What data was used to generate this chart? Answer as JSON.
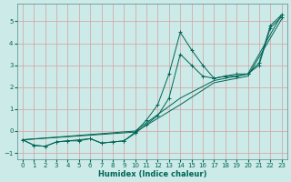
{
  "xlabel": "Humidex (Indice chaleur)",
  "xlim": [
    -0.5,
    23.5
  ],
  "ylim": [
    -1.3,
    5.8
  ],
  "background_color": "#cceae8",
  "grid_color": "#d4a0a0",
  "line_color": "#006655",
  "x_ticks": [
    0,
    1,
    2,
    3,
    4,
    5,
    6,
    7,
    8,
    9,
    10,
    11,
    12,
    13,
    14,
    15,
    16,
    17,
    18,
    19,
    20,
    21,
    22,
    23
  ],
  "y_ticks": [
    -1,
    0,
    1,
    2,
    3,
    4,
    5
  ],
  "series": [
    {
      "x": [
        0,
        1,
        2,
        3,
        4,
        5,
        6,
        7,
        8,
        9,
        10,
        11,
        12,
        13,
        14,
        15,
        16,
        17,
        18,
        19,
        20,
        21,
        22,
        23
      ],
      "y": [
        -0.4,
        -0.65,
        -0.7,
        -0.5,
        -0.45,
        -0.45,
        -0.35,
        -0.55,
        -0.5,
        -0.45,
        -0.05,
        0.5,
        1.2,
        2.6,
        4.5,
        3.7,
        3.0,
        2.4,
        2.5,
        2.6,
        2.6,
        3.1,
        4.8,
        5.3
      ],
      "marker": true
    },
    {
      "x": [
        0,
        1,
        2,
        3,
        4,
        5,
        6,
        7,
        8,
        9,
        10,
        11,
        12,
        13,
        14,
        15,
        16,
        17,
        18,
        19,
        20,
        21,
        22,
        23
      ],
      "y": [
        -0.4,
        -0.65,
        -0.7,
        -0.5,
        -0.45,
        -0.4,
        -0.35,
        -0.55,
        -0.5,
        -0.45,
        -0.1,
        0.3,
        0.7,
        1.5,
        3.5,
        3.0,
        2.5,
        2.4,
        2.5,
        2.5,
        2.6,
        3.0,
        4.7,
        5.2
      ],
      "marker": true
    },
    {
      "x": [
        0,
        10,
        14,
        17,
        20,
        23
      ],
      "y": [
        -0.4,
        0.0,
        1.5,
        2.3,
        2.6,
        5.3
      ],
      "marker": false
    },
    {
      "x": [
        0,
        10,
        14,
        17,
        20,
        23
      ],
      "y": [
        -0.4,
        -0.05,
        1.2,
        2.2,
        2.5,
        5.1
      ],
      "marker": false
    }
  ]
}
